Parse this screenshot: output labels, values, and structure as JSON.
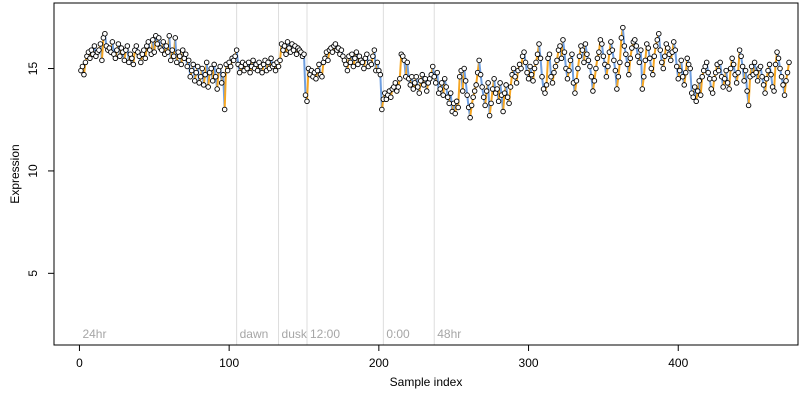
{
  "chart_data": {
    "type": "scatter",
    "title": "",
    "xlabel": "Sample index",
    "ylabel": "Expression",
    "xlim": [
      -17,
      480
    ],
    "ylim": [
      1.5,
      18.2
    ],
    "x_ticks": [
      0,
      100,
      200,
      300,
      400
    ],
    "y_ticks": [
      5,
      10,
      15
    ],
    "grid": false,
    "colors": {
      "up": "#f5a623",
      "down": "#6f9fe0",
      "neutral": "#a6a6a6",
      "point_edge": "#000000",
      "separator": "#dcdcdc",
      "phase_label": "#a6a6a6"
    },
    "phases": [
      {
        "label": "24hr",
        "x": 0
      },
      {
        "label": "dawn",
        "x": 105
      },
      {
        "label": "dusk",
        "x": 133
      },
      {
        "label": "12:00",
        "x": 152
      },
      {
        "label": "0:00",
        "x": 203
      },
      {
        "label": "48hr",
        "x": 237
      }
    ],
    "separators": [
      105,
      133,
      152,
      203,
      237
    ],
    "series": [
      {
        "start": 1,
        "values": [
          14.9,
          15.1,
          14.7,
          15.3,
          15.6,
          15.8,
          15.5,
          15.9,
          15.7,
          16.1,
          15.6,
          15.8,
          15.9,
          16.2,
          15.4,
          16.5,
          16.7,
          16.1,
          15.9,
          16.0,
          15.8,
          16.3,
          15.7,
          15.5,
          15.9,
          16.2,
          15.6,
          16.0,
          15.8,
          15.4,
          15.9,
          16.1,
          15.3,
          15.7,
          15.5,
          15.2,
          15.9,
          16.1,
          15.8,
          15.6,
          15.3,
          15.7,
          15.9,
          15.5,
          16.1,
          16.3,
          15.9,
          15.7,
          16.4,
          15.8,
          16.6,
          16.2,
          16.5,
          16.0,
          15.9,
          16.3,
          15.7,
          16.1,
          15.8,
          16.6,
          15.4,
          15.9,
          15.6,
          16.5,
          15.3,
          15.8,
          15.6,
          15.2,
          15.9,
          15.5,
          15.7,
          15.1,
          15.4,
          14.6,
          14.9,
          15.2,
          14.4,
          14.8,
          15.1,
          14.3,
          14.6,
          15.0,
          14.2,
          14.7,
          15.3,
          14.1,
          14.8,
          15.0,
          14.4,
          15.2,
          14.6,
          14.0,
          14.9,
          15.1,
          14.3,
          14.7,
          13.0,
          15.2,
          14.9,
          15.3,
          15.1,
          15.5,
          15.4,
          15.6,
          15.9,
          15.2,
          14.8,
          15.1,
          15.3,
          14.9,
          15.2,
          15.0,
          15.3,
          14.8,
          15.1,
          15.4,
          15.0,
          15.2,
          14.9,
          15.3,
          15.1,
          14.8,
          15.2,
          15.4,
          14.9,
          15.3,
          15.0,
          15.5,
          15.1,
          15.2,
          14.9,
          15.3,
          15.1,
          15.4,
          16.2,
          15.9,
          16.1,
          15.7,
          16.3,
          16.0,
          15.8,
          16.2,
          15.9,
          16.1,
          15.7,
          16.0,
          15.9,
          15.8,
          15.6,
          15.7,
          13.7,
          13.4,
          15.0,
          14.7,
          14.9,
          14.6,
          14.8,
          14.5,
          14.9,
          15.2,
          14.7,
          14.6,
          15.3,
          15.5,
          15.8,
          15.4,
          15.9,
          16.0,
          15.8,
          16.1,
          16.2,
          15.9,
          16.0,
          15.7,
          15.9,
          15.6,
          15.4,
          15.2,
          14.9,
          15.6,
          15.3,
          15.7,
          15.1,
          15.5,
          15.8,
          15.2,
          15.6,
          15.4,
          15.3,
          15.0,
          15.5,
          15.7,
          15.1,
          15.3,
          15.2,
          15.6,
          15.9,
          14.9,
          15.3,
          14.9,
          14.7,
          13.0,
          13.5,
          13.8,
          13.5,
          13.7,
          13.9,
          13.6,
          14.0,
          14.1,
          14.3,
          13.9,
          14.1,
          14.5,
          15.7,
          15.6,
          15.4,
          14.6,
          15.3,
          14.5,
          14.2,
          14.6,
          14.0,
          14.3,
          14.6,
          14.1,
          13.8,
          14.4,
          14.7,
          14.2,
          14.5,
          13.9,
          14.3,
          14.5,
          14.7,
          15.1,
          14.6,
          14.3,
          14.8,
          13.8,
          14.0,
          14.3,
          13.7,
          14.5,
          14.1,
          13.6,
          13.3,
          13.8,
          12.9,
          13.3,
          12.8,
          13.4,
          13.1,
          14.6,
          14.9,
          13.9,
          15.0,
          14.4,
          13.7,
          13.1,
          12.6,
          13.2,
          13.6,
          13.9,
          14.2,
          14.8,
          15.4,
          14.7,
          14.1,
          13.6,
          13.2,
          13.9,
          14.3,
          12.7,
          13.3,
          14.0,
          14.5,
          13.8,
          14.0,
          13.4,
          14.3,
          13.7,
          12.9,
          13.8,
          14.2,
          13.6,
          13.3,
          14.1,
          14.7,
          15.0,
          14.6,
          14.3,
          14.9,
          15.2,
          15.0,
          15.6,
          15.8,
          15.3,
          14.8,
          14.5,
          15.1,
          14.7,
          14.4,
          15.0,
          15.3,
          15.7,
          16.2,
          15.5,
          14.6,
          14.0,
          13.8,
          14.2,
          15.5,
          15.7,
          14.6,
          14.3,
          14.8,
          15.1,
          15.4,
          15.9,
          16.1,
          15.5,
          16.4,
          15.8,
          15.0,
          14.5,
          14.9,
          15.4,
          15.7,
          14.3,
          13.8,
          14.4,
          15.0,
          15.6,
          16.1,
          15.9,
          15.3,
          16.2,
          15.7,
          15.4,
          15.1,
          14.6,
          13.9,
          14.4,
          15.0,
          15.5,
          15.8,
          16.4,
          16.2,
          15.6,
          15.2,
          14.6,
          15.1,
          15.8,
          16.3,
          15.9,
          15.4,
          14.9,
          14.0,
          14.6,
          15.3,
          16.5,
          17.0,
          16.1,
          15.7,
          15.2,
          14.7,
          15.5,
          16.0,
          16.3,
          16.4,
          16.1,
          15.6,
          15.3,
          15.9,
          14.0,
          14.6,
          15.4,
          16.2,
          16.0,
          15.5,
          15.0,
          14.7,
          15.6,
          16.1,
          16.4,
          16.7,
          15.9,
          15.3,
          15.0,
          15.6,
          16.2,
          16.0,
          15.7,
          15.4,
          15.8,
          16.3,
          15.9,
          15.1,
          14.5,
          14.9,
          15.4,
          14.6,
          14.2,
          14.8,
          15.5,
          15.2,
          15.0,
          13.8,
          13.6,
          14.1,
          13.4,
          13.9,
          14.4,
          13.7,
          14.6,
          14.9,
          15.1,
          15.3,
          14.8,
          14.5,
          14.0,
          13.8,
          14.5,
          14.8,
          15.2,
          14.9,
          15.3,
          14.6,
          14.1,
          14.5,
          14.9,
          14.3,
          14.0,
          15.0,
          15.5,
          15.2,
          14.7,
          14.3,
          14.8,
          15.9,
          15.6,
          15.1,
          14.4,
          14.9,
          13.9,
          13.2,
          14.6,
          15.1,
          14.7,
          15.3,
          14.8,
          14.4,
          15.0,
          15.1,
          14.6,
          14.2,
          13.8,
          14.5,
          14.9,
          15.2,
          14.7,
          14.1,
          13.9,
          15.2,
          15.8,
          15.5,
          15.0,
          14.6,
          14.2,
          13.7,
          14.4,
          14.8,
          15.3
        ]
      }
    ]
  }
}
